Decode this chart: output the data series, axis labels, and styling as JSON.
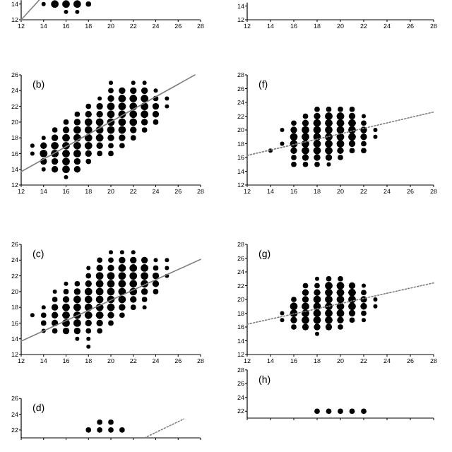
{
  "chart_data": [
    {
      "type": "bubble",
      "xlim": [
        12,
        28
      ],
      "xticks": [
        12,
        14,
        16,
        18,
        20,
        22,
        24,
        26,
        28
      ],
      "ylim": [
        12,
        14.5
      ],
      "yticks": [
        12,
        14
      ],
      "series": [
        {
          "color": "#000000",
          "x": [
            14,
            15,
            16,
            17,
            18,
            16,
            17
          ],
          "values": [
            14,
            14,
            14,
            14,
            14,
            13,
            13
          ],
          "sizes": [
            0.3,
            1,
            1,
            1,
            0.5,
            0.3,
            0.3
          ]
        },
        {
          "type": "line",
          "color": "#808080",
          "line_style": "solid",
          "x": [
            12,
            13.6
          ],
          "values": [
            12,
            14.5
          ]
        }
      ]
    },
    {
      "type": "bubble",
      "xlim": [
        12,
        28
      ],
      "xticks": [
        12,
        14,
        16,
        18,
        20,
        22,
        24,
        26,
        28
      ],
      "ylim": [
        12,
        14.5
      ],
      "yticks": [
        12,
        14
      ]
    },
    {
      "type": "bubble",
      "title": "(b)",
      "xlim": [
        12,
        28
      ],
      "xticks": [
        12,
        14,
        16,
        18,
        20,
        22,
        24,
        26,
        28
      ],
      "ylim": [
        12,
        26
      ],
      "yticks": [
        12,
        14,
        16,
        18,
        20,
        22,
        24,
        26
      ],
      "series": [
        {
          "color": "#000000",
          "x": [
            13,
            13,
            14,
            14,
            14,
            14,
            14,
            15,
            15,
            15,
            15,
            15,
            15,
            16,
            16,
            16,
            16,
            16,
            16,
            16,
            16,
            17,
            17,
            17,
            17,
            17,
            17,
            17,
            17,
            18,
            18,
            18,
            18,
            18,
            18,
            18,
            18,
            19,
            19,
            19,
            19,
            19,
            19,
            19,
            19,
            20,
            20,
            20,
            20,
            20,
            20,
            20,
            20,
            20,
            20,
            21,
            21,
            21,
            21,
            21,
            21,
            21,
            21,
            22,
            22,
            22,
            22,
            22,
            22,
            22,
            22,
            23,
            23,
            23,
            23,
            23,
            23,
            23,
            24,
            24,
            24,
            24,
            24,
            25,
            25
          ],
          "values": [
            16,
            17,
            14,
            15,
            16,
            17,
            18,
            14,
            15,
            16,
            17,
            18,
            19,
            13,
            14,
            15,
            16,
            17,
            18,
            19,
            20,
            14,
            15,
            16,
            17,
            18,
            19,
            20,
            21,
            15,
            16,
            17,
            18,
            19,
            20,
            21,
            22,
            16,
            17,
            18,
            19,
            20,
            21,
            22,
            23,
            16,
            17,
            18,
            19,
            20,
            21,
            22,
            23,
            24,
            25,
            17,
            18,
            19,
            20,
            21,
            22,
            23,
            24,
            18,
            19,
            20,
            21,
            22,
            23,
            24,
            25,
            19,
            20,
            21,
            22,
            23,
            24,
            25,
            20,
            21,
            22,
            23,
            24,
            22,
            23
          ],
          "sizes": [
            0.3,
            0.3,
            0.3,
            0.75,
            1,
            0.75,
            0.3,
            0.75,
            0.75,
            1,
            1,
            0.75,
            0.5,
            0.3,
            1,
            1,
            1,
            1,
            1,
            0.75,
            0.5,
            0.75,
            0.75,
            1,
            1,
            1,
            1,
            0.75,
            0.5,
            0.5,
            0.75,
            1,
            1,
            1,
            1,
            0.75,
            0.5,
            0.5,
            0.75,
            1,
            1,
            1,
            0.75,
            0.75,
            0.3,
            0.5,
            0.5,
            0.75,
            1,
            1,
            1,
            1,
            0.75,
            0.5,
            0.3,
            0.5,
            0.75,
            1,
            1,
            1,
            1,
            1,
            0.75,
            0.5,
            0.75,
            1,
            1,
            1,
            1,
            0.75,
            0.3,
            0.5,
            0.75,
            1,
            1,
            1,
            0.75,
            0.3,
            0.5,
            0.75,
            0.75,
            0.5,
            0.3,
            0.3,
            0.3
          ]
        },
        {
          "type": "line",
          "color": "#808080",
          "line_style": "solid",
          "x": [
            12,
            27.5
          ],
          "values": [
            13.7,
            26
          ]
        }
      ]
    },
    {
      "type": "bubble",
      "title": "(f)",
      "xlim": [
        12,
        28
      ],
      "xticks": [
        12,
        14,
        16,
        18,
        20,
        22,
        24,
        26,
        28
      ],
      "ylim": [
        12,
        28
      ],
      "yticks": [
        12,
        14,
        16,
        18,
        20,
        22,
        24,
        26,
        28
      ],
      "series": [
        {
          "color": "#000000",
          "x": [
            14,
            15,
            15,
            16,
            16,
            16,
            16,
            16,
            16,
            16,
            17,
            17,
            17,
            17,
            17,
            17,
            17,
            17,
            18,
            18,
            18,
            18,
            18,
            18,
            18,
            18,
            18,
            19,
            19,
            19,
            19,
            19,
            19,
            19,
            19,
            19,
            20,
            20,
            20,
            20,
            20,
            20,
            20,
            20,
            21,
            21,
            21,
            21,
            21,
            21,
            21,
            22,
            22,
            22,
            22,
            22,
            22,
            23,
            23
          ],
          "values": [
            17,
            18,
            20,
            15,
            16,
            17,
            18,
            19,
            20,
            21,
            15,
            16,
            17,
            18,
            19,
            20,
            21,
            22,
            15,
            16,
            17,
            18,
            19,
            20,
            21,
            22,
            23,
            15,
            16,
            17,
            18,
            19,
            20,
            21,
            22,
            23,
            16,
            17,
            18,
            19,
            20,
            21,
            22,
            23,
            17,
            18,
            19,
            20,
            21,
            22,
            23,
            17,
            18,
            19,
            20,
            21,
            22,
            19,
            20
          ],
          "sizes": [
            0.3,
            0.3,
            0.3,
            0.5,
            0.5,
            0.75,
            1,
            1,
            0.75,
            0.5,
            0.5,
            0.75,
            1,
            1,
            1,
            1,
            0.75,
            0.5,
            0.5,
            0.75,
            1,
            1,
            1,
            1,
            1,
            0.75,
            0.5,
            0.3,
            0.75,
            1,
            1,
            1,
            1,
            1,
            1,
            0.5,
            0.5,
            0.75,
            1,
            1,
            1,
            1,
            1,
            0.5,
            0.5,
            0.75,
            1,
            1,
            1,
            0.75,
            0.5,
            0.5,
            0.5,
            0.75,
            0.75,
            0.5,
            0.3,
            0.3,
            0.3
          ]
        },
        {
          "type": "line",
          "color": "#808080",
          "line_style": "dotted",
          "x": [
            12,
            28
          ],
          "values": [
            16.3,
            22.6
          ]
        }
      ]
    },
    {
      "type": "bubble",
      "title": "(c)",
      "xlim": [
        12,
        28
      ],
      "xticks": [
        12,
        14,
        16,
        18,
        20,
        22,
        24,
        26,
        28
      ],
      "ylim": [
        12,
        26
      ],
      "yticks": [
        12,
        14,
        16,
        18,
        20,
        22,
        24,
        26
      ],
      "series": [
        {
          "color": "#000000",
          "x": [
            13,
            14,
            14,
            14,
            14,
            15,
            15,
            15,
            15,
            15,
            15,
            16,
            16,
            16,
            16,
            16,
            16,
            16,
            17,
            17,
            17,
            17,
            17,
            17,
            17,
            17,
            18,
            18,
            18,
            18,
            18,
            18,
            18,
            18,
            18,
            18,
            18,
            19,
            19,
            19,
            19,
            19,
            19,
            19,
            19,
            19,
            19,
            20,
            20,
            20,
            20,
            20,
            20,
            20,
            20,
            20,
            20,
            21,
            21,
            21,
            21,
            21,
            21,
            21,
            21,
            21,
            22,
            22,
            22,
            22,
            22,
            22,
            22,
            22,
            23,
            23,
            23,
            23,
            23,
            23,
            23,
            24,
            24,
            24,
            24,
            24,
            25,
            25,
            25
          ],
          "values": [
            17,
            15,
            16,
            17,
            18,
            15,
            16,
            17,
            18,
            19,
            20,
            15,
            16,
            17,
            18,
            19,
            20,
            21,
            14,
            15,
            16,
            17,
            18,
            19,
            20,
            21,
            13,
            14,
            15,
            16,
            17,
            18,
            19,
            20,
            21,
            22,
            23,
            15,
            16,
            17,
            18,
            19,
            20,
            21,
            22,
            23,
            24,
            16,
            17,
            18,
            19,
            20,
            21,
            22,
            23,
            24,
            25,
            17,
            18,
            19,
            20,
            21,
            22,
            23,
            24,
            25,
            18,
            19,
            20,
            21,
            22,
            23,
            24,
            25,
            18,
            19,
            20,
            21,
            22,
            23,
            24,
            20,
            21,
            22,
            23,
            24,
            22,
            23,
            24
          ],
          "sizes": [
            0.3,
            0.3,
            0.5,
            0.5,
            0.3,
            0.5,
            0.75,
            0.75,
            0.75,
            0.5,
            0.3,
            0.75,
            1,
            1,
            1,
            0.75,
            0.5,
            0.3,
            0.3,
            0.75,
            1,
            1,
            1,
            1,
            0.75,
            0.5,
            0.3,
            0.3,
            0.5,
            0.75,
            1,
            1,
            1,
            1,
            0.75,
            0.5,
            0.3,
            0.5,
            0.75,
            1,
            1,
            1,
            1,
            1,
            1,
            0.75,
            0.5,
            0.5,
            0.75,
            1,
            1,
            1,
            1,
            1,
            0.75,
            0.5,
            0.3,
            0.5,
            0.75,
            1,
            1,
            1,
            1,
            1,
            0.75,
            0.3,
            0.5,
            0.75,
            1,
            1,
            1,
            1,
            0.75,
            0.3,
            0.3,
            0.5,
            0.75,
            1,
            1,
            1,
            0.75,
            0.5,
            0.75,
            0.75,
            0.5,
            0.3,
            0.3,
            0.3,
            0.3
          ]
        },
        {
          "type": "line",
          "color": "#808080",
          "line_style": "solid",
          "x": [
            12,
            28
          ],
          "values": [
            13.7,
            24.1
          ]
        }
      ]
    },
    {
      "type": "bubble",
      "title": "(g)",
      "xlim": [
        12,
        28
      ],
      "xticks": [
        12,
        14,
        16,
        18,
        20,
        22,
        24,
        26,
        28
      ],
      "ylim": [
        12,
        28
      ],
      "yticks": [
        12,
        14,
        16,
        18,
        20,
        22,
        24,
        26,
        28
      ],
      "series": [
        {
          "color": "#000000",
          "x": [
            15,
            15,
            16,
            16,
            16,
            16,
            16,
            17,
            17,
            17,
            17,
            17,
            17,
            17,
            18,
            18,
            18,
            18,
            18,
            18,
            18,
            18,
            18,
            19,
            19,
            19,
            19,
            19,
            19,
            19,
            19,
            20,
            20,
            20,
            20,
            20,
            20,
            20,
            20,
            21,
            21,
            21,
            21,
            21,
            21,
            22,
            22,
            22,
            22,
            22,
            22,
            23,
            23
          ],
          "values": [
            17,
            18,
            16,
            17,
            18,
            19,
            20,
            16,
            17,
            18,
            19,
            20,
            21,
            22,
            15,
            16,
            17,
            18,
            19,
            20,
            21,
            22,
            23,
            16,
            17,
            18,
            19,
            20,
            21,
            22,
            23,
            16,
            17,
            18,
            19,
            20,
            21,
            22,
            23,
            17,
            18,
            19,
            20,
            21,
            22,
            17,
            18,
            19,
            20,
            21,
            22,
            19,
            20
          ],
          "sizes": [
            0.3,
            0.3,
            0.5,
            0.75,
            1,
            1,
            0.5,
            0.75,
            1,
            1,
            1,
            0.75,
            0.75,
            0.5,
            0.3,
            0.75,
            1,
            1,
            1,
            1,
            0.75,
            0.5,
            0.3,
            0.75,
            1,
            1,
            1,
            1,
            1,
            1,
            0.5,
            0.5,
            0.75,
            1,
            1,
            1,
            1,
            1,
            0.5,
            0.5,
            0.75,
            1,
            1,
            1,
            0.75,
            0.3,
            0.5,
            0.75,
            0.75,
            0.5,
            0.3,
            0.3,
            0.3
          ]
        },
        {
          "type": "line",
          "color": "#808080",
          "line_style": "dotted",
          "x": [
            12,
            28
          ],
          "values": [
            16.4,
            22.4
          ]
        }
      ]
    },
    {
      "type": "scatter",
      "title": "(d)",
      "xlim": [
        12,
        28
      ],
      "xticks": [
        12,
        14,
        16,
        18,
        20,
        22,
        24,
        26,
        28
      ],
      "ylim": [
        21,
        26
      ],
      "yticks": [
        22,
        24,
        26
      ],
      "tick_labels": "y",
      "series": [
        {
          "color": "#000000",
          "marker": "circle",
          "x": [
            18,
            19,
            19,
            20,
            20,
            21
          ],
          "values": [
            22,
            22,
            23,
            22,
            23,
            22
          ]
        },
        {
          "type": "line",
          "color": "#808080",
          "line_style": "dotted",
          "x": [
            23,
            26.5
          ],
          "values": [
            21,
            23.4
          ]
        }
      ]
    },
    {
      "type": "scatter",
      "title": "(h)",
      "xlim": [
        12,
        28
      ],
      "xticks": [
        12,
        14,
        16,
        18,
        20,
        22,
        24,
        26,
        28
      ],
      "ylim": [
        21,
        28
      ],
      "yticks": [
        22,
        24,
        26,
        28
      ],
      "tick_labels": "y",
      "series": [
        {
          "color": "#000000",
          "marker": "circle",
          "x": [
            18,
            19,
            20,
            21,
            22
          ],
          "values": [
            22,
            22,
            22,
            22,
            22
          ]
        }
      ]
    }
  ]
}
